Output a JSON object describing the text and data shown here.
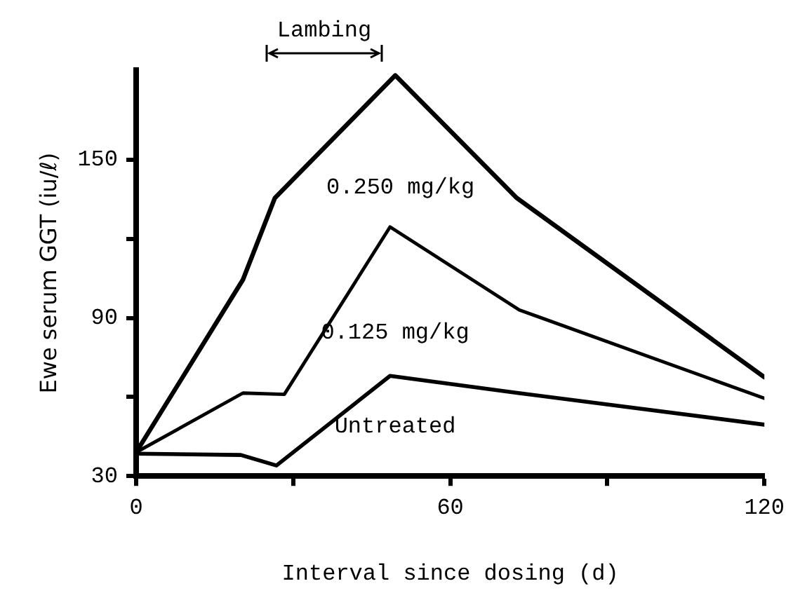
{
  "chart_data": {
    "type": "line",
    "xlabel": "Interval since dosing (d)",
    "ylabel": "Ewe serum GGT (iu/ℓ)",
    "xlim": [
      0,
      120
    ],
    "xticks": [
      0,
      {
        "value": 30,
        "label": null
      },
      60,
      {
        "value": 90,
        "label": null
      },
      120
    ],
    "ylim": [
      30,
      184
    ],
    "yticks": [
      30,
      {
        "value": 60,
        "label": null
      },
      90,
      {
        "value": 120,
        "label": null
      },
      150
    ],
    "series": [
      {
        "name": "0.250 mg/kg",
        "color": "#000000",
        "x": [
          0,
          20.4,
          26.5,
          49.5,
          72.7,
          120
        ],
        "values": [
          39,
          104.5,
          135.5,
          182,
          135.5,
          67.5
        ]
      },
      {
        "name": "0.125 mg/kg",
        "color": "#000000",
        "x": [
          0,
          20.4,
          28.3,
          48.5,
          73.2,
          120
        ],
        "values": [
          39,
          61.5,
          61,
          124.5,
          93,
          59.5
        ]
      },
      {
        "name": "Untreated",
        "color": "#000000",
        "x": [
          0,
          20,
          26.8,
          48.5,
          73,
          120
        ],
        "values": [
          38.5,
          38,
          34,
          68,
          61.5,
          49.5
        ]
      }
    ],
    "annotations": [
      "Lambing"
    ],
    "grid": false,
    "legend": false,
    "marker": "none",
    "line_style": "solid"
  }
}
